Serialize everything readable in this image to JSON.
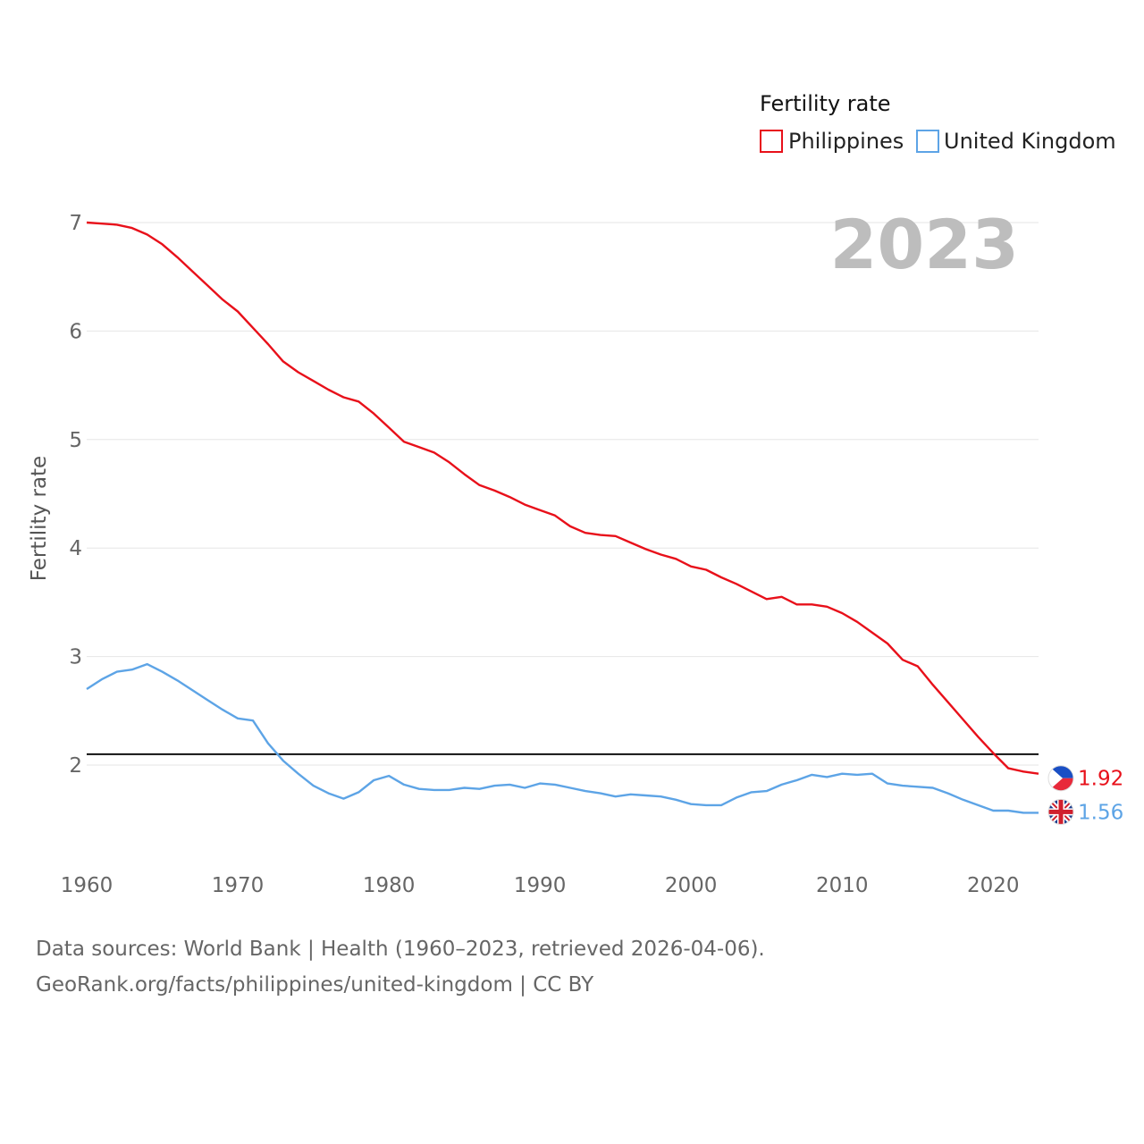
{
  "chart_data": {
    "type": "line",
    "title": "Fertility rate",
    "ylabel": "Fertility rate",
    "xlabel": "",
    "current_year_label": "2023",
    "xlim": [
      1960,
      2023
    ],
    "ylim": [
      1.35,
      7
    ],
    "y_ticks": [
      2,
      3,
      4,
      5,
      6,
      7
    ],
    "x_ticks": [
      1960,
      1970,
      1980,
      1990,
      2000,
      2010,
      2020
    ],
    "reference_line": 2.1,
    "grid": true,
    "legend_position": "top-right",
    "x": [
      1960,
      1961,
      1962,
      1963,
      1964,
      1965,
      1966,
      1967,
      1968,
      1969,
      1970,
      1971,
      1972,
      1973,
      1974,
      1975,
      1976,
      1977,
      1978,
      1979,
      1980,
      1981,
      1982,
      1983,
      1984,
      1985,
      1986,
      1987,
      1988,
      1989,
      1990,
      1991,
      1992,
      1993,
      1994,
      1995,
      1996,
      1997,
      1998,
      1999,
      2000,
      2001,
      2002,
      2003,
      2004,
      2005,
      2006,
      2007,
      2008,
      2009,
      2010,
      2011,
      2012,
      2013,
      2014,
      2015,
      2016,
      2017,
      2018,
      2019,
      2020,
      2021,
      2022,
      2023
    ],
    "series": [
      {
        "name": "Philippines",
        "color": "#e8101a",
        "end_label": "1.92",
        "values": [
          7.0,
          6.99,
          6.98,
          6.95,
          6.89,
          6.8,
          6.68,
          6.55,
          6.42,
          6.29,
          6.18,
          6.03,
          5.88,
          5.72,
          5.62,
          5.54,
          5.46,
          5.39,
          5.35,
          5.24,
          5.11,
          4.98,
          4.93,
          4.88,
          4.79,
          4.68,
          4.58,
          4.53,
          4.47,
          4.4,
          4.35,
          4.3,
          4.2,
          4.14,
          4.12,
          4.11,
          4.05,
          3.99,
          3.94,
          3.9,
          3.83,
          3.8,
          3.73,
          3.67,
          3.6,
          3.53,
          3.55,
          3.48,
          3.48,
          3.46,
          3.4,
          3.32,
          3.22,
          3.12,
          2.97,
          2.91,
          2.74,
          2.58,
          2.42,
          2.26,
          2.11,
          1.97,
          1.94,
          1.92
        ]
      },
      {
        "name": "United Kingdom",
        "color": "#5da4e6",
        "end_label": "1.56",
        "values": [
          2.7,
          2.79,
          2.86,
          2.88,
          2.93,
          2.86,
          2.78,
          2.69,
          2.6,
          2.51,
          2.43,
          2.41,
          2.2,
          2.04,
          1.92,
          1.81,
          1.74,
          1.69,
          1.75,
          1.86,
          1.9,
          1.82,
          1.78,
          1.77,
          1.77,
          1.79,
          1.78,
          1.81,
          1.82,
          1.79,
          1.83,
          1.82,
          1.79,
          1.76,
          1.74,
          1.71,
          1.73,
          1.72,
          1.71,
          1.68,
          1.64,
          1.63,
          1.63,
          1.7,
          1.75,
          1.76,
          1.82,
          1.86,
          1.91,
          1.89,
          1.92,
          1.91,
          1.92,
          1.83,
          1.81,
          1.8,
          1.79,
          1.74,
          1.68,
          1.63,
          1.58,
          1.58,
          1.56,
          1.56
        ]
      }
    ]
  },
  "footer": {
    "line1": "Data sources: World Bank | Health (1960–2023, retrieved 2026-04-06).",
    "line2": "GeoRank.org/facts/philippines/united-kingdom | CC BY"
  }
}
